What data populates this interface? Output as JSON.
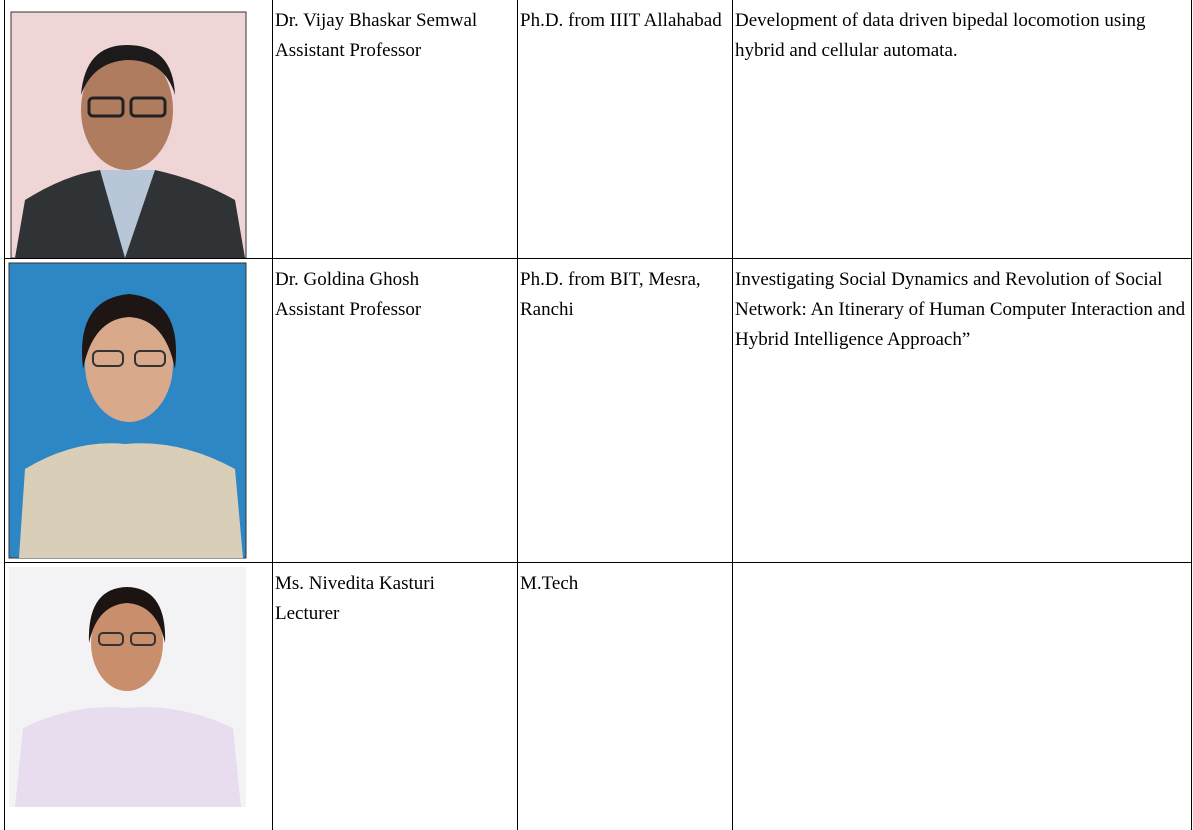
{
  "table": {
    "rows": [
      {
        "name": "Dr. Vijay Bhaskar Semwal",
        "designation": "Assistant Professor",
        "qualification": "Ph.D. from IIIT Allahabad",
        "research": "Development of data driven bipedal locomotion using hybrid and cellular automata."
      },
      {
        "name": "Dr. Goldina Ghosh",
        "designation": "Assistant Professor",
        "qualification": "Ph.D. from BIT, Mesra, Ranchi",
        "research": "Investigating Social Dynamics and Revolution of Social Network: An Itinerary of Human Computer Interaction and Hybrid Intelligence Approach”"
      },
      {
        "name": "Ms. Nivedita Kasturi",
        "designation": "Lecturer",
        "qualification": "M.Tech",
        "research": ""
      }
    ]
  }
}
